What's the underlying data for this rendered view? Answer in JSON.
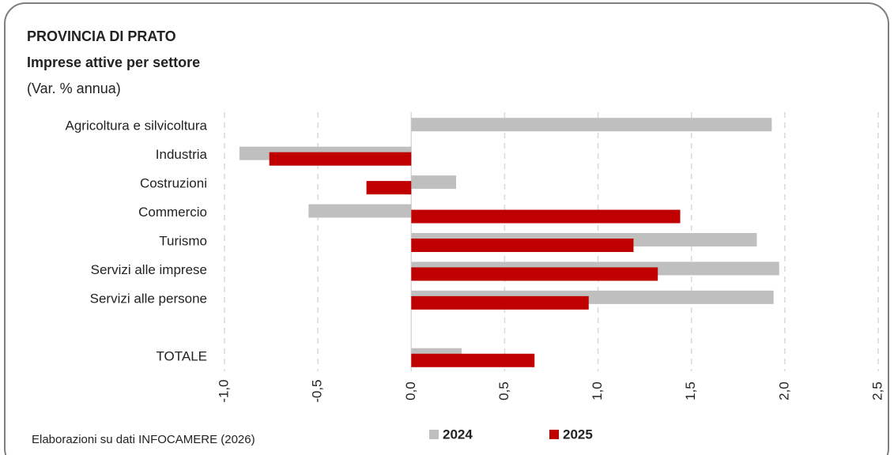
{
  "chart_data": {
    "type": "bar",
    "title": "PROVINCIA DI PRATO",
    "subtitle": "Imprese attive per settore",
    "unit_label": "(Var. % annua)",
    "source": "Elaborazioni su dati INFOCAMERE (2026)",
    "categories": [
      "Agricoltura e silvicoltura",
      "Industria",
      "Costruzioni",
      "Commercio",
      "Turismo",
      "Servizi alle imprese",
      "Servizi alle persone",
      null,
      "TOTALE"
    ],
    "series": [
      {
        "name": "2024",
        "color": "#bfbfbf",
        "values": [
          1.93,
          -0.92,
          0.24,
          -0.55,
          1.85,
          1.97,
          1.94,
          null,
          0.27
        ]
      },
      {
        "name": "2025",
        "color": "#c00000",
        "values": [
          0,
          -0.76,
          -0.24,
          1.44,
          1.19,
          1.32,
          0.95,
          null,
          0.66
        ]
      }
    ],
    "xlim": [
      -1.0,
      2.5
    ],
    "xticks": [
      {
        "value": -1.0,
        "label": "-1,0"
      },
      {
        "value": -0.5,
        "label": "-0,5"
      },
      {
        "value": 0,
        "label": "0,0"
      },
      {
        "value": 0.5,
        "label": "0,5"
      },
      {
        "value": 1.0,
        "label": "1,0"
      },
      {
        "value": 1.5,
        "label": "1,5"
      },
      {
        "value": 2.0,
        "label": "2,0"
      },
      {
        "value": 2.5,
        "label": "2,5"
      }
    ],
    "grid": true,
    "legend": "bottom"
  }
}
